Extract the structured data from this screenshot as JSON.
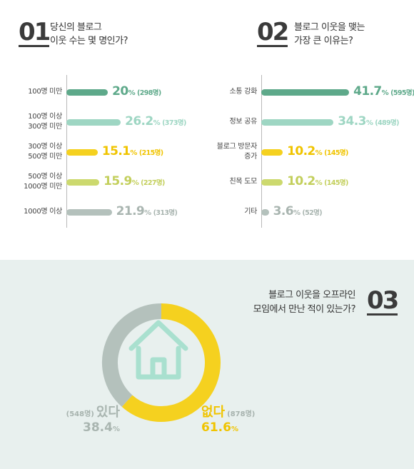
{
  "q1": {
    "number": "01",
    "question_line1": "당신의 블로그",
    "question_line2": "이웃 수는 몇 명인가?"
  },
  "q2": {
    "number": "02",
    "question_line1": "블로그 이웃을 맺는",
    "question_line2": "가장 큰 이유는?"
  },
  "q3": {
    "number": "03",
    "question_line1": "블로그 이웃을 오프라인",
    "question_line2": "모임에서 만난 적이 있는가?"
  },
  "colors": {
    "dark_green": "#5ea98a",
    "mint": "#9ed6c3",
    "yellow": "#f5d11f",
    "lime": "#ccd96e",
    "gray": "#b4c1bc",
    "house": "#a9e0cf"
  },
  "chart_data": [
    {
      "type": "bar",
      "orientation": "horizontal",
      "title": "당신의 블로그 이웃 수는 몇 명인가?",
      "categories": [
        "100명 미만",
        "100명 이상 300명 미만",
        "300명 이상 500명 미만",
        "500명 이상 1000명 미만",
        "1000명 이상"
      ],
      "category_lines": [
        [
          "100명 미만"
        ],
        [
          "100명 이상",
          "300명 미만"
        ],
        [
          "300명 이상",
          "500명 미만"
        ],
        [
          "500명 이상",
          "1000명 미만"
        ],
        [
          "1000명 이상"
        ]
      ],
      "values": [
        20,
        26.2,
        15.1,
        15.9,
        21.9
      ],
      "value_labels": [
        "20",
        "26.2",
        "15.1",
        "15.9",
        "21.9"
      ],
      "unit": "%",
      "counts": [
        "(298명)",
        "(373명)",
        "(215명)",
        "(227명)",
        "(313명)"
      ],
      "bar_colors": [
        "#5ea98a",
        "#9ed6c3",
        "#f5d11f",
        "#ccd96e",
        "#b4c1bc"
      ],
      "xlim": [
        0,
        42
      ]
    },
    {
      "type": "bar",
      "orientation": "horizontal",
      "title": "블로그 이웃을 맺는 가장 큰 이유는?",
      "categories": [
        "소통 강화",
        "정보 공유",
        "블로그 방문자 증가",
        "친목 도모",
        "기타"
      ],
      "category_lines": [
        [
          "소통 강화"
        ],
        [
          "정보 공유"
        ],
        [
          "블로그 방문자",
          "증가"
        ],
        [
          "친목 도모"
        ],
        [
          "기타"
        ]
      ],
      "values": [
        41.7,
        34.3,
        10.2,
        10.2,
        3.6
      ],
      "value_labels": [
        "41.7",
        "34.3",
        "10.2",
        "10.2",
        "3.6"
      ],
      "unit": "%",
      "counts": [
        "(595명)",
        "(489명)",
        "(145명)",
        "(145명)",
        "(52명)"
      ],
      "bar_colors": [
        "#5ea98a",
        "#9ed6c3",
        "#f5d11f",
        "#ccd96e",
        "#b4c1bc"
      ],
      "xlim": [
        0,
        42
      ]
    },
    {
      "type": "pie",
      "donut": true,
      "title": "블로그 이웃을 오프라인 모임에서 만난 적이 있는가?",
      "labels": [
        "없다",
        "있다"
      ],
      "values": [
        61.6,
        38.4
      ],
      "value_labels": [
        "61.6",
        "38.4"
      ],
      "unit": "%",
      "counts": [
        "(878명)",
        "(548명)"
      ],
      "colors": [
        "#f5d11f",
        "#b4c1bc"
      ]
    }
  ]
}
